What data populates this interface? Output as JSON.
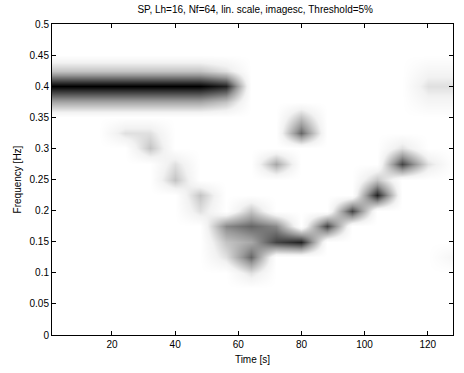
{
  "chart_data": {
    "type": "heatmap",
    "title": "SP, Lh=16, Nf=64, lin. scale, imagesc, Threshold=5%",
    "x_label": "Time [s]",
    "y_label": "Frequency [Hz]",
    "x": [
      0,
      8,
      16,
      24,
      32,
      40,
      48,
      56,
      64,
      72,
      80,
      88,
      96,
      104,
      112,
      120,
      128
    ],
    "y": [
      0,
      0.025,
      0.05,
      0.075,
      0.1,
      0.125,
      0.15,
      0.175,
      0.2,
      0.225,
      0.25,
      0.275,
      0.3,
      0.325,
      0.35,
      0.375,
      0.4,
      0.425,
      0.45,
      0.475,
      0.5
    ],
    "z": [
      [
        0,
        0,
        0,
        0,
        0,
        0,
        0,
        0,
        0,
        0,
        0,
        0,
        0,
        0,
        0,
        0,
        0
      ],
      [
        0,
        0,
        0,
        0,
        0,
        0,
        0,
        0,
        0,
        0,
        0,
        0,
        0,
        0,
        0,
        0,
        0
      ],
      [
        0,
        0,
        0,
        0,
        0,
        0,
        0,
        0,
        0,
        0,
        0,
        0,
        0,
        0,
        0,
        0,
        0
      ],
      [
        0,
        0,
        0,
        0,
        0,
        0,
        0,
        0,
        0,
        0,
        0,
        0,
        0,
        0,
        0,
        0,
        0
      ],
      [
        0,
        0,
        0,
        0,
        0,
        0,
        0,
        0,
        2,
        0,
        0,
        0,
        0,
        0,
        0,
        0,
        0
      ],
      [
        0,
        0,
        0,
        0,
        0,
        0,
        0,
        2,
        6,
        0,
        0,
        0,
        0,
        0,
        0,
        0,
        1
      ],
      [
        0,
        0,
        0,
        0,
        0,
        0,
        0,
        3,
        4,
        7,
        8,
        0,
        0,
        0,
        0,
        0,
        0
      ],
      [
        0,
        0,
        0,
        0,
        0,
        0,
        0,
        5,
        6,
        5,
        0,
        7,
        0,
        0,
        0,
        0,
        0
      ],
      [
        0,
        0,
        0,
        0,
        0,
        0,
        2,
        0,
        3,
        0,
        0,
        0,
        7,
        0,
        0,
        0,
        0
      ],
      [
        0,
        0,
        0,
        0,
        0,
        0,
        3,
        0,
        0,
        0,
        0,
        0,
        0,
        8,
        0,
        0,
        0
      ],
      [
        0,
        0,
        0,
        0,
        0,
        3,
        0,
        0,
        0,
        0,
        0,
        0,
        0,
        3,
        0,
        0,
        0
      ],
      [
        0,
        0,
        0,
        0,
        0,
        2,
        0,
        0,
        0,
        4,
        0,
        0,
        0,
        0,
        7,
        2,
        0
      ],
      [
        0,
        0,
        0,
        0,
        3,
        0,
        0,
        0,
        0,
        0,
        0,
        0,
        0,
        0,
        2,
        0,
        0
      ],
      [
        0,
        0,
        0,
        2,
        2,
        0,
        0,
        0,
        0,
        0,
        6,
        0,
        0,
        0,
        0,
        0,
        0
      ],
      [
        0,
        0,
        0,
        0,
        0,
        0,
        0,
        0,
        0,
        0,
        3,
        0,
        0,
        0,
        0,
        0,
        0
      ],
      [
        4,
        4,
        4,
        4,
        4,
        4,
        4,
        3,
        0,
        0,
        0,
        0,
        0,
        0,
        0,
        1,
        1
      ],
      [
        9,
        9,
        9,
        9,
        9,
        9,
        9,
        8,
        0,
        0,
        0,
        0,
        0,
        0,
        0,
        2,
        2
      ],
      [
        3,
        3,
        3,
        3,
        3,
        3,
        3,
        2,
        0,
        0,
        0,
        0,
        0,
        0,
        0,
        1,
        1
      ],
      [
        0,
        0,
        0,
        0,
        0,
        0,
        0,
        0,
        0,
        0,
        0,
        0,
        0,
        0,
        0,
        0,
        0
      ],
      [
        0,
        0,
        0,
        0,
        0,
        0,
        0,
        0,
        0,
        0,
        0,
        0,
        0,
        0,
        0,
        0,
        0
      ],
      [
        0,
        0,
        0,
        0,
        0,
        0,
        0,
        0,
        0,
        0,
        0,
        0,
        0,
        0,
        0,
        0,
        0
      ]
    ],
    "xlim": [
      1,
      128
    ],
    "xticks": [
      20,
      40,
      60,
      80,
      100,
      120
    ],
    "ylim": [
      0,
      0.5
    ],
    "yticks": [
      0,
      0.05,
      0.1,
      0.15,
      0.2,
      0.25,
      0.3,
      0.35,
      0.4,
      0.45,
      0.5
    ],
    "grid": false
  }
}
